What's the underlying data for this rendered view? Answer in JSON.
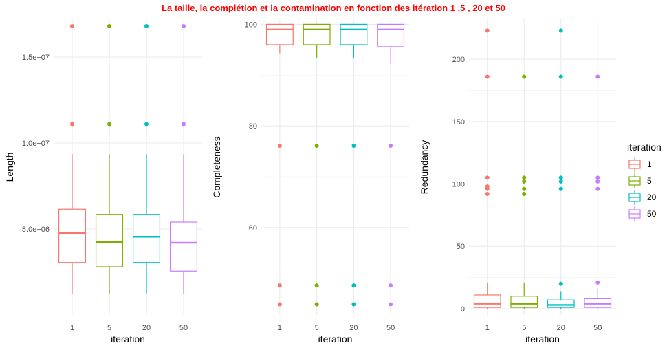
{
  "title": "La taille, la complétion et la contamination en fonction des itération 1 ,5 , 20 et 50",
  "legend": {
    "title": "iteration",
    "position": "right"
  },
  "colors": {
    "1": "#F8766D",
    "5": "#7CAE00",
    "20": "#00BFC4",
    "50": "#C77CFF",
    "title": "#FF0000"
  },
  "chart_data": [
    {
      "type": "box",
      "title": "",
      "xlabel": "iteration",
      "ylabel": "Length",
      "categories": [
        "1",
        "5",
        "20",
        "50"
      ],
      "ylim": [
        0,
        17200000
      ],
      "yticks": [
        5000000,
        10000000,
        15000000
      ],
      "ytick_labels": [
        "5.0e+06",
        "1.0e+07",
        "1.5e+07"
      ],
      "grid": true,
      "boxes": [
        {
          "name": "1",
          "min": 1200000,
          "q1": 3050000,
          "median": 4750000,
          "q3": 6150000,
          "max": 9350000,
          "outliers": [
            11100000,
            16800000
          ]
        },
        {
          "name": "5",
          "min": 1200000,
          "q1": 2800000,
          "median": 4250000,
          "q3": 5850000,
          "max": 9350000,
          "outliers": [
            11100000,
            16800000
          ]
        },
        {
          "name": "20",
          "min": 1200000,
          "q1": 3050000,
          "median": 4550000,
          "q3": 5850000,
          "max": 9350000,
          "outliers": [
            11100000,
            16800000
          ]
        },
        {
          "name": "50",
          "min": 1200000,
          "q1": 2550000,
          "median": 4200000,
          "q3": 5400000,
          "max": 9350000,
          "outliers": [
            11100000,
            16800000
          ]
        }
      ]
    },
    {
      "type": "box",
      "title": "",
      "xlabel": "iteration",
      "ylabel": "Completeness",
      "categories": [
        "1",
        "5",
        "20",
        "50"
      ],
      "ylim": [
        42.8,
        101
      ],
      "yticks": [
        60,
        80,
        100
      ],
      "ytick_labels": [
        "60",
        "80",
        "100"
      ],
      "grid": true,
      "boxes": [
        {
          "name": "1",
          "min": 94.3,
          "q1": 96.0,
          "median": 99.0,
          "q3": 100.0,
          "max": 100.0,
          "outliers": [
            76.1,
            48.6,
            44.9
          ]
        },
        {
          "name": "5",
          "min": 93.3,
          "q1": 96.0,
          "median": 99.0,
          "q3": 100.0,
          "max": 100.0,
          "outliers": [
            76.1,
            48.6,
            44.9
          ]
        },
        {
          "name": "20",
          "min": 93.3,
          "q1": 96.0,
          "median": 99.0,
          "q3": 100.0,
          "max": 100.0,
          "outliers": [
            76.1,
            48.6,
            44.9
          ]
        },
        {
          "name": "50",
          "min": 92.3,
          "q1": 95.6,
          "median": 99.0,
          "q3": 100.0,
          "max": 100.0,
          "outliers": [
            76.1,
            48.6,
            44.9
          ]
        }
      ]
    },
    {
      "type": "box",
      "title": "",
      "xlabel": "iteration",
      "ylabel": "Redundancy",
      "categories": [
        "1",
        "5",
        "20",
        "50"
      ],
      "ylim": [
        -5,
        232
      ],
      "yticks": [
        0,
        50,
        100,
        150,
        200
      ],
      "ytick_labels": [
        "0",
        "50",
        "100",
        "150",
        "200"
      ],
      "grid": true,
      "boxes": [
        {
          "name": "1",
          "min": 0,
          "q1": 1,
          "median": 4,
          "q3": 11,
          "max": 21,
          "outliers": [
            223,
            186,
            105,
            98,
            96,
            92
          ]
        },
        {
          "name": "5",
          "min": 0,
          "q1": 1,
          "median": 4,
          "q3": 10,
          "max": 21,
          "outliers": [
            186,
            105,
            102,
            96,
            92
          ]
        },
        {
          "name": "20",
          "min": 0,
          "q1": 1,
          "median": 3,
          "q3": 7,
          "max": 14,
          "outliers": [
            223,
            186,
            105,
            102,
            96,
            20
          ]
        },
        {
          "name": "50",
          "min": 0,
          "q1": 1,
          "median": 4,
          "q3": 8,
          "max": 16,
          "outliers": [
            186,
            105,
            102,
            96,
            21
          ]
        }
      ]
    }
  ]
}
